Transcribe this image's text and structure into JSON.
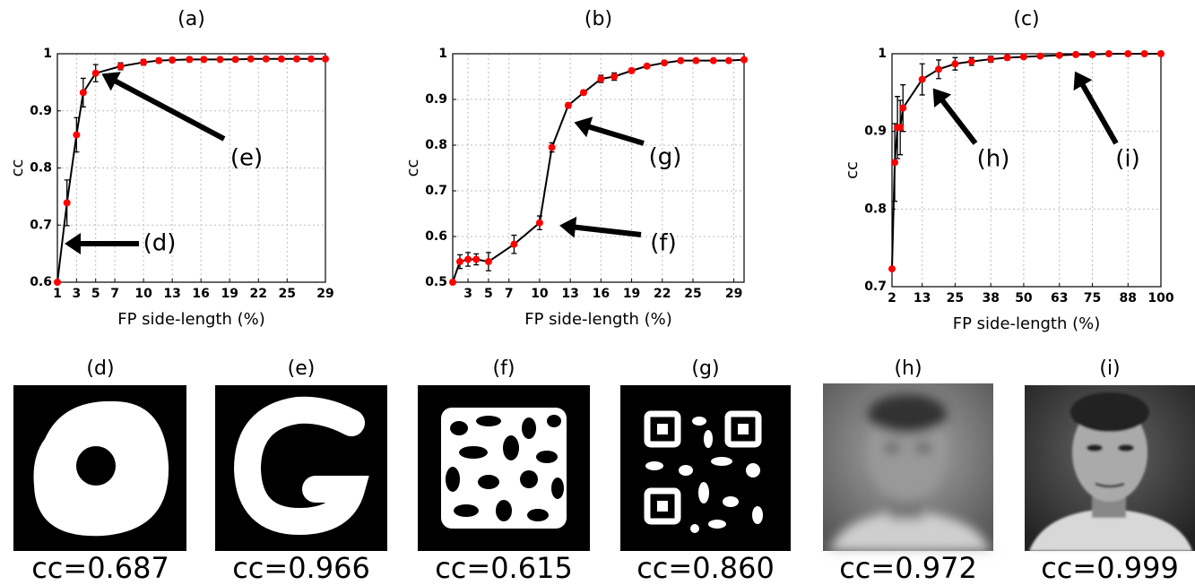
{
  "chart_data": [
    {
      "type": "line",
      "title": "(a)",
      "xlabel": "FP side-length (%)",
      "ylabel": "cc",
      "x": [
        1,
        2,
        3,
        3.7,
        5,
        7.6,
        10,
        11.6,
        13,
        14.8,
        16.3,
        18,
        19.6,
        21.2,
        22.8,
        24.4,
        26,
        27.5,
        29
      ],
      "values": [
        0.6,
        0.739,
        0.858,
        0.932,
        0.966,
        0.978,
        0.985,
        0.988,
        0.989,
        0.99,
        0.99,
        0.99,
        0.99,
        0.991,
        0.991,
        0.991,
        0.991,
        0.991,
        0.991
      ],
      "errors": [
        null,
        0.04,
        0.03,
        0.025,
        0.015,
        0.006,
        0.005,
        0.004,
        0.004,
        0.004,
        0.004,
        0.003,
        0.003,
        0.003,
        0.003,
        0.003,
        0.003,
        0.003,
        0.003
      ],
      "xlim": [
        1,
        29
      ],
      "ylim": [
        0.6,
        1
      ],
      "xticks": [
        1,
        3,
        5,
        7,
        10,
        13,
        16,
        19,
        22,
        25,
        29
      ],
      "yticks": [
        0.6,
        0.7,
        0.8,
        0.9,
        1
      ],
      "grid": true,
      "color": "#ff0000",
      "line_color": "#000000",
      "annotations": [
        "(d)",
        "(e)"
      ]
    },
    {
      "type": "line",
      "title": "(b)",
      "xlabel": "FP side-length (%)",
      "ylabel": "cc",
      "x": [
        1.5,
        2.2,
        3,
        3.8,
        5,
        7.5,
        10,
        11.2,
        12.8,
        14.3,
        16,
        17.3,
        19,
        20.5,
        22.2,
        23.8,
        25.3,
        27,
        28.5,
        30
      ],
      "values": [
        0.5,
        0.545,
        0.55,
        0.55,
        0.545,
        0.583,
        0.63,
        0.795,
        0.887,
        0.915,
        0.945,
        0.95,
        0.963,
        0.973,
        0.98,
        0.985,
        0.985,
        0.985,
        0.985,
        0.987
      ],
      "errors": [
        null,
        0.015,
        0.015,
        0.012,
        0.02,
        0.02,
        0.015,
        0.01,
        0.005,
        0.005,
        0.008,
        0.008,
        0.005,
        0.004,
        0.004,
        0.004,
        0.003,
        0.003,
        0.003,
        0.003
      ],
      "xlim": [
        1.5,
        30
      ],
      "ylim": [
        0.5,
        1
      ],
      "xticks": [
        3,
        5,
        7,
        10,
        13,
        16,
        19,
        22,
        25,
        29
      ],
      "yticks": [
        0.5,
        0.6,
        0.7,
        0.8,
        0.9,
        1
      ],
      "grid": true,
      "color": "#ff0000",
      "line_color": "#000000",
      "annotations": [
        "(g)",
        "(f)"
      ]
    },
    {
      "type": "line",
      "title": "(c)",
      "xlabel": "FP side-length (%)",
      "ylabel": "cc",
      "x": [
        2,
        3,
        4,
        5,
        6,
        13,
        19,
        25,
        31,
        38,
        44,
        50,
        56,
        63,
        69,
        75,
        81,
        88,
        94,
        100
      ],
      "values": [
        0.723,
        0.86,
        0.905,
        0.905,
        0.93,
        0.967,
        0.98,
        0.987,
        0.99,
        0.993,
        0.995,
        0.996,
        0.997,
        0.998,
        0.999,
        0.999,
        1,
        1,
        1,
        1
      ],
      "errors": [
        null,
        0.05,
        0.04,
        0.035,
        0.03,
        0.02,
        0.012,
        0.008,
        0.005,
        0.004,
        0.003,
        0.002,
        0.002,
        0.001,
        0.001,
        null,
        null,
        null,
        null,
        null
      ],
      "xlim": [
        2,
        100
      ],
      "ylim": [
        0.7,
        1
      ],
      "xticks": [
        2,
        13,
        25,
        38,
        50,
        63,
        75,
        88,
        100
      ],
      "yticks": [
        0.7,
        0.8,
        0.9,
        1
      ],
      "grid": true,
      "color": "#ff0000",
      "line_color": "#000000",
      "annotations": [
        "(h)",
        "(i)"
      ]
    }
  ],
  "panels": [
    {
      "label": "(d)",
      "caption": "cc=0.687"
    },
    {
      "label": "(e)",
      "caption": "cc=0.966"
    },
    {
      "label": "(f)",
      "caption": "cc=0.615"
    },
    {
      "label": "(g)",
      "caption": "cc=0.860"
    },
    {
      "label": "(h)",
      "caption": "cc=0.972"
    },
    {
      "label": "(i)",
      "caption": "cc=0.999"
    }
  ]
}
